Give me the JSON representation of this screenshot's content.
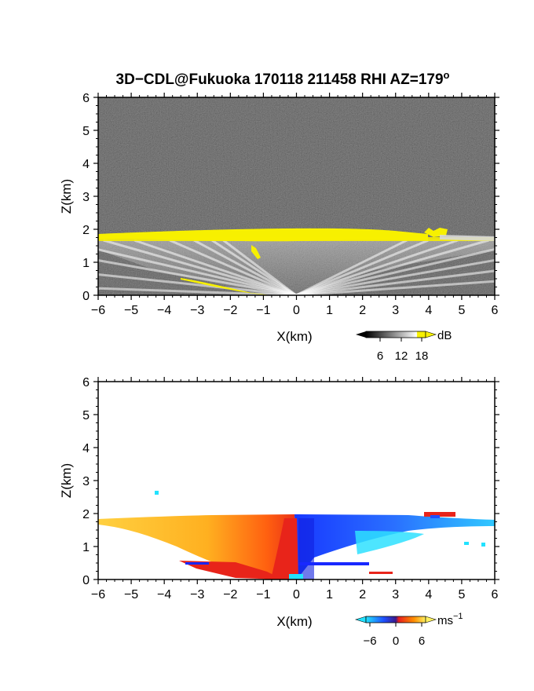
{
  "title_main": "3D−CDL@Fukuoka 170118 211458 RHI AZ=179",
  "title_sup": "o",
  "chart_data": [
    {
      "type": "heatmap",
      "quantity": "backscatter intensity",
      "xlabel": "X(km)",
      "ylabel": "Z(km)",
      "xlim": [
        -6,
        6
      ],
      "ylim": [
        0,
        6
      ],
      "xticks": [
        "−6",
        "−5",
        "−4",
        "−3",
        "−2",
        "−1",
        "0",
        "1",
        "2",
        "3",
        "4",
        "5",
        "6"
      ],
      "yticks": [
        "0",
        "1",
        "2",
        "3",
        "4",
        "5",
        "6"
      ],
      "colorbar": {
        "unit": "dB",
        "ticks": [
          "6",
          "12",
          "18"
        ],
        "colormap": "grayscale-to-yellow"
      },
      "features": {
        "layer_top_km": 2.0,
        "layer_base_km": 1.6,
        "echo_extent_x_km": [
          -6,
          6
        ],
        "lower_echo_x_km": [
          -3.5,
          -0.5
        ]
      }
    },
    {
      "type": "heatmap",
      "quantity": "Doppler velocity",
      "xlabel": "X(km)",
      "ylabel": "Z(km)",
      "xlim": [
        -6,
        6
      ],
      "ylim": [
        0,
        6
      ],
      "xticks": [
        "−6",
        "−5",
        "−4",
        "−3",
        "−2",
        "−1",
        "0",
        "1",
        "2",
        "3",
        "4",
        "5",
        "6"
      ],
      "yticks": [
        "0",
        "1",
        "2",
        "3",
        "4",
        "5",
        "6"
      ],
      "colorbar": {
        "unit": "ms",
        "unit_sup": "−1",
        "ticks": [
          "−6",
          "0",
          "6"
        ],
        "colormap": "cyan-blue-red-orange-yellow"
      },
      "features": {
        "negative_velocity_x_km": [
          0,
          6
        ],
        "positive_velocity_x_km": [
          -6,
          0
        ]
      }
    }
  ],
  "colors": {
    "gray_bg": "#1e1e1e",
    "yellow": "#f7f000",
    "cyan": "#22e2ff",
    "blue": "#1f4fff",
    "red": "#e8201e",
    "orange": "#ff8c00",
    "light_yellow": "#ffe060"
  }
}
